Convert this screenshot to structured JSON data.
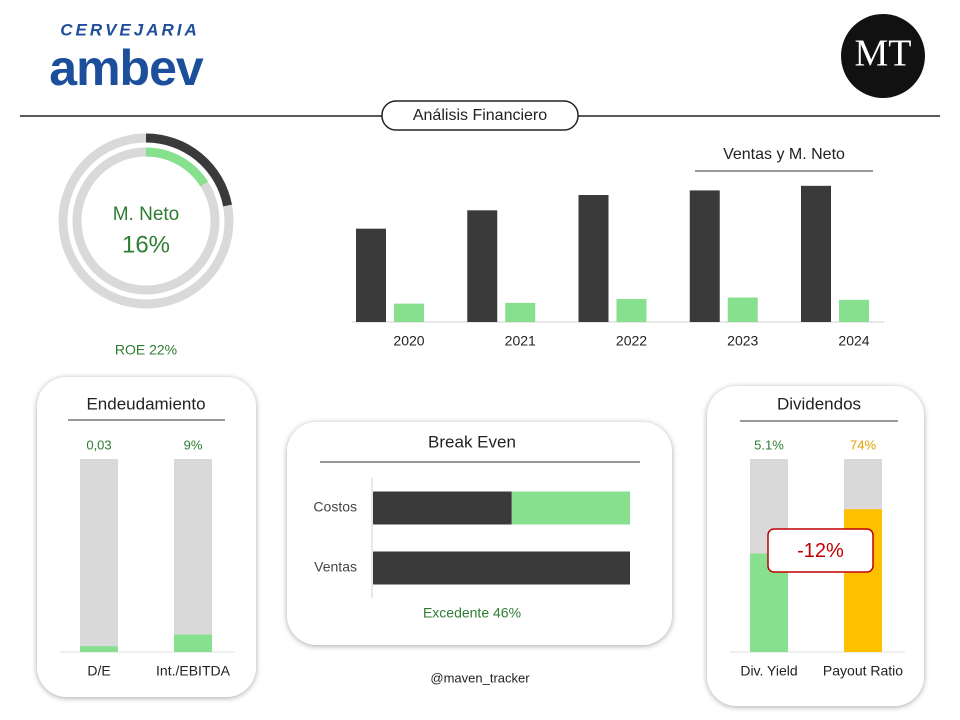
{
  "brand": {
    "subtitle": "CERVEJARIA",
    "name": "ambev",
    "badge": "MT"
  },
  "header": {
    "title": "Análisis Financiero"
  },
  "footer": {
    "handle": "@maven_tracker"
  },
  "chart_data": [
    {
      "type": "donut",
      "title": "M. Neto",
      "ylim": [
        0,
        100
      ],
      "track_color": "#d9d9d9",
      "rings": [
        {
          "value": 22,
          "color": "#3a3a3a",
          "value_label": "ROE 22%"
        },
        {
          "value": 16,
          "color": "#86e08e",
          "value_label": "16%"
        }
      ]
    },
    {
      "type": "bar",
      "title": "Ventas y M. Neto",
      "ylim": [
        0,
        100
      ],
      "categories": [
        "2020",
        "2021",
        "2022",
        "2023",
        "2024"
      ],
      "series": [
        {
          "color": "#3a3a3a",
          "values": [
            61,
            73,
            83,
            86,
            89
          ]
        },
        {
          "color": "#86e08e",
          "values": [
            12,
            12.5,
            15,
            16,
            14.5
          ]
        }
      ]
    },
    {
      "type": "gauge_bars",
      "title": "Endeudamiento",
      "track_color": "#d9d9d9",
      "categories": [
        "D/E",
        "Int./EBITDA"
      ],
      "values": [
        0.03,
        9
      ],
      "value_labels": [
        "0,03",
        "9%"
      ],
      "ylims": [
        [
          0,
          1
        ],
        [
          0,
          100
        ]
      ],
      "colors": [
        "#86e08e",
        "#86e08e"
      ],
      "label_colors": [
        "#2e7d32",
        "#2e7d32"
      ]
    },
    {
      "type": "stacked_barh",
      "title": "Break Even",
      "xlim": [
        0,
        100
      ],
      "categories": [
        "Costos",
        "Ventas"
      ],
      "series": [
        {
          "color": "#3a3a3a",
          "values": [
            54,
            100
          ]
        },
        {
          "color": "#86e08e",
          "values": [
            46,
            null
          ]
        }
      ],
      "annotation": "Excedente 46%"
    },
    {
      "type": "gauge_bars",
      "title": "Dividendos",
      "track_color": "#d9d9d9",
      "categories": [
        "Div. Yield",
        "Payout Ratio"
      ],
      "values": [
        5.1,
        74
      ],
      "value_labels": [
        "5.1%",
        "74%"
      ],
      "ylims": [
        [
          0,
          10
        ],
        [
          0,
          100
        ]
      ],
      "colors": [
        "#86e08e",
        "#ffc000"
      ],
      "label_colors": [
        "#2e7d32",
        "#e0a000"
      ],
      "annotation": "-12%"
    }
  ]
}
